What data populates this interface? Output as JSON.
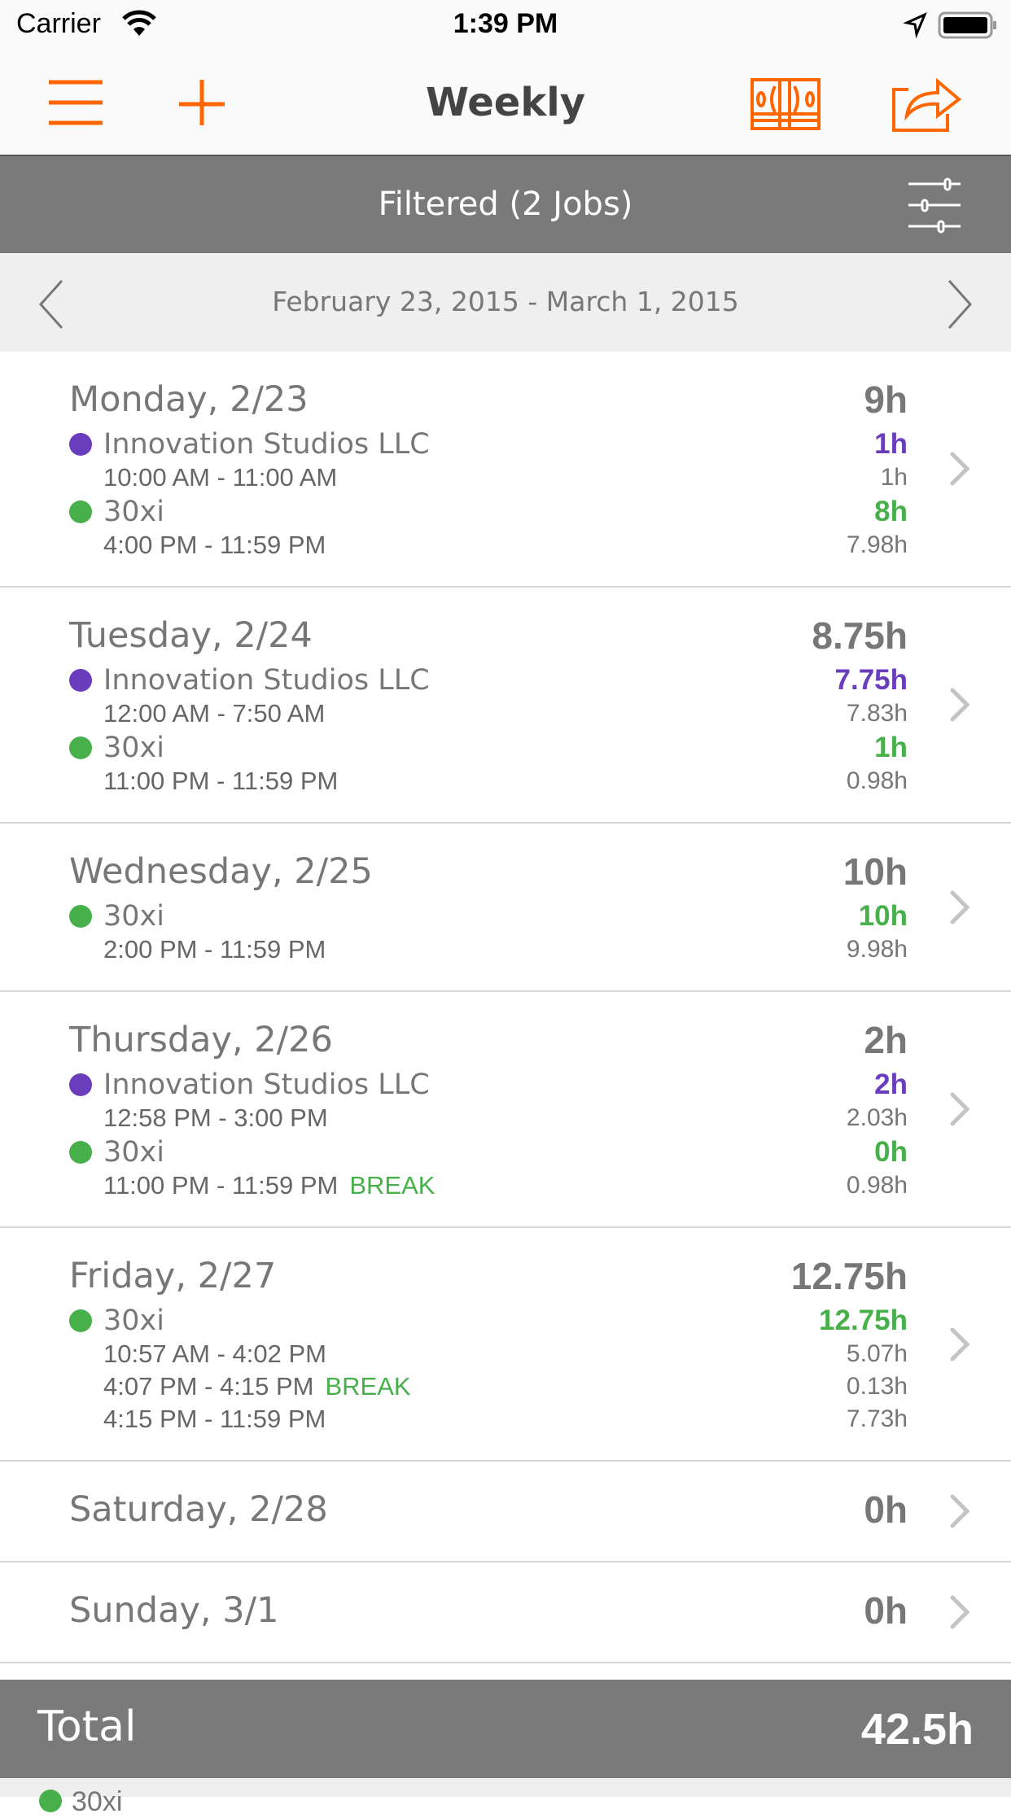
{
  "status_bar": {
    "carrier": "Carrier",
    "time": "1:39 PM"
  },
  "nav": {
    "title": "Weekly",
    "icons": [
      "menu-icon",
      "plus-icon",
      "money-icon",
      "share-icon"
    ]
  },
  "filter_bar": {
    "label": "Filtered (2 Jobs)",
    "icon": "sliders-icon"
  },
  "date_bar": {
    "range": "February 23, 2015 - March 1, 2015"
  },
  "colors": {
    "accent": "#ff6600",
    "purple": "#6a3dbd",
    "green": "#47b04b",
    "bar_gray": "#7a7a7a"
  },
  "days": [
    {
      "title": "Monday, 2/23",
      "total": "9h",
      "jobs": [
        {
          "name": "Innovation Studios LLC",
          "color": "#6a3dbd",
          "hours": "1h",
          "entries": [
            {
              "time": "10:00 AM - 11:00 AM",
              "duration": "1h"
            }
          ]
        },
        {
          "name": "30xi",
          "color": "#47b04b",
          "hours": "8h",
          "entries": [
            {
              "time": "4:00 PM - 11:59 PM",
              "duration": "7.98h"
            }
          ]
        }
      ]
    },
    {
      "title": "Tuesday, 2/24",
      "total": "8.75h",
      "jobs": [
        {
          "name": "Innovation Studios LLC",
          "color": "#6a3dbd",
          "hours": "7.75h",
          "entries": [
            {
              "time": "12:00 AM - 7:50 AM",
              "duration": "7.83h"
            }
          ]
        },
        {
          "name": "30xi",
          "color": "#47b04b",
          "hours": "1h",
          "entries": [
            {
              "time": "11:00 PM - 11:59 PM",
              "duration": "0.98h"
            }
          ]
        }
      ]
    },
    {
      "title": "Wednesday, 2/25",
      "total": "10h",
      "jobs": [
        {
          "name": "30xi",
          "color": "#47b04b",
          "hours": "10h",
          "entries": [
            {
              "time": "2:00 PM - 11:59 PM",
              "duration": "9.98h"
            }
          ]
        }
      ]
    },
    {
      "title": "Thursday, 2/26",
      "total": "2h",
      "jobs": [
        {
          "name": "Innovation Studios LLC",
          "color": "#6a3dbd",
          "hours": "2h",
          "entries": [
            {
              "time": "12:58 PM - 3:00 PM",
              "duration": "2.03h"
            }
          ]
        },
        {
          "name": "30xi",
          "color": "#47b04b",
          "hours": "0h",
          "entries": [
            {
              "time": "11:00 PM - 11:59 PM",
              "break": "BREAK",
              "duration": "0.98h"
            }
          ]
        }
      ]
    },
    {
      "title": "Friday, 2/27",
      "total": "12.75h",
      "jobs": [
        {
          "name": "30xi",
          "color": "#47b04b",
          "hours": "12.75h",
          "entries": [
            {
              "time": "10:57 AM - 4:02 PM",
              "duration": "5.07h"
            },
            {
              "time": "4:07 PM - 4:15 PM",
              "break": "BREAK",
              "duration": "0.13h"
            },
            {
              "time": "4:15 PM - 11:59 PM",
              "duration": "7.73h"
            }
          ]
        }
      ]
    },
    {
      "title": "Saturday, 2/28",
      "total": "0h",
      "jobs": []
    },
    {
      "title": "Sunday, 3/1",
      "total": "0h",
      "jobs": []
    }
  ],
  "total": {
    "label": "Total",
    "value": "42.5h"
  },
  "footer": {
    "job": "30xi",
    "color": "#47b04b"
  }
}
